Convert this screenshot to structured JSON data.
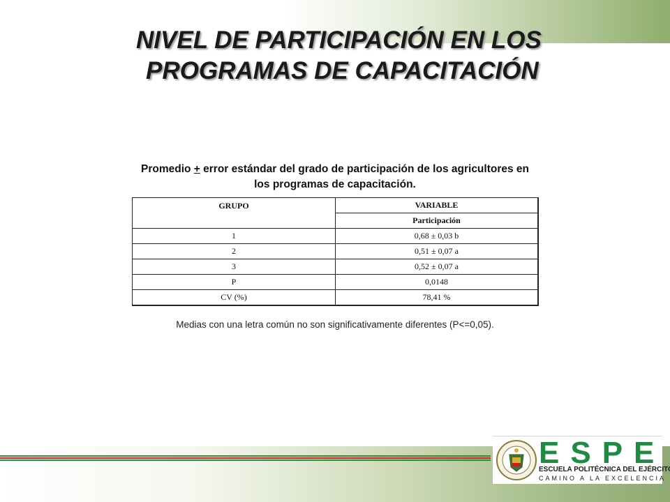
{
  "title": {
    "line1": "NIVEL DE PARTICIPACIÓN EN LOS",
    "line2": "PROGRAMAS DE CAPACITACIÓN"
  },
  "caption": {
    "part1": "Promedio ",
    "pm": "+",
    "part2": " error estándar del grado de participación de los agricultores en los programas de capacitación."
  },
  "table": {
    "header_group": "GRUPO",
    "header_variable": "VARIABLE",
    "sub_header": "Participación",
    "rows": [
      {
        "group": "1",
        "value": "0,68 ± 0,03 b"
      },
      {
        "group": "2",
        "value": "0,51 ± 0,07 a"
      },
      {
        "group": "3",
        "value": "0,52 ± 0,07 a"
      },
      {
        "group": "P",
        "value": "0,0148"
      },
      {
        "group": "CV (%)",
        "value": "78,41 %"
      }
    ]
  },
  "note": "Medias con una letra común no son significativamente diferentes (P<=0,05).",
  "logo": {
    "letters": "ESPE",
    "subtitle": "ESCUELA POLITÉCNICA DEL EJÉRCITO",
    "tagline": "CAMINO A LA EXCELENCIA",
    "seal_text": "ESCUELA POLITÉCNICA DEL EJÉRCITO ECUADOR"
  },
  "colors": {
    "brand_green": "#1f8a43",
    "stripe_green": "#2f8a3a",
    "stripe_red": "#c8201f"
  }
}
